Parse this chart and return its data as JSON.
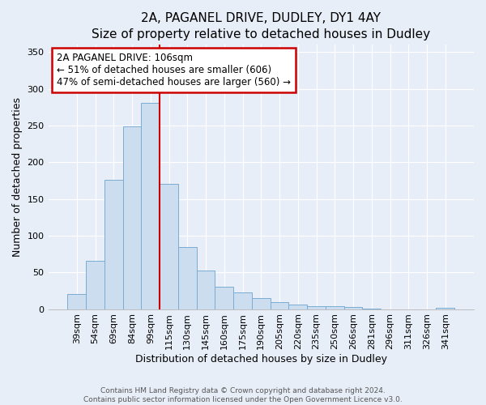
{
  "title1": "2A, PAGANEL DRIVE, DUDLEY, DY1 4AY",
  "title2": "Size of property relative to detached houses in Dudley",
  "xlabel": "Distribution of detached houses by size in Dudley",
  "ylabel": "Number of detached properties",
  "bar_labels": [
    "39sqm",
    "54sqm",
    "69sqm",
    "84sqm",
    "99sqm",
    "115sqm",
    "130sqm",
    "145sqm",
    "160sqm",
    "175sqm",
    "190sqm",
    "205sqm",
    "220sqm",
    "235sqm",
    "250sqm",
    "266sqm",
    "281sqm",
    "296sqm",
    "311sqm",
    "326sqm",
    "341sqm"
  ],
  "bar_values": [
    20,
    66,
    176,
    249,
    281,
    171,
    85,
    52,
    30,
    23,
    15,
    10,
    6,
    4,
    4,
    3,
    1,
    0,
    0,
    0,
    2
  ],
  "bar_color": "#ccddf0",
  "bar_edgecolor": "#7aadd4",
  "vline_position": 4.5,
  "vline_color": "#cc0000",
  "annotation_title": "2A PAGANEL DRIVE: 106sqm",
  "annotation_line1": "← 51% of detached houses are smaller (606)",
  "annotation_line2": "47% of semi-detached houses are larger (560) →",
  "annotation_box_edgecolor": "#cc0000",
  "ylim": [
    0,
    360
  ],
  "yticks": [
    0,
    50,
    100,
    150,
    200,
    250,
    300,
    350
  ],
  "footer1": "Contains HM Land Registry data © Crown copyright and database right 2024.",
  "footer2": "Contains public sector information licensed under the Open Government Licence v3.0.",
  "bg_color": "#e8eef8",
  "plot_bg_color": "#e8eef8",
  "grid_color": "#ffffff",
  "title1_fontsize": 11,
  "title2_fontsize": 10,
  "xlabel_fontsize": 9,
  "ylabel_fontsize": 9,
  "tick_fontsize": 8,
  "annotation_fontsize": 8.5,
  "footer_fontsize": 6.5
}
